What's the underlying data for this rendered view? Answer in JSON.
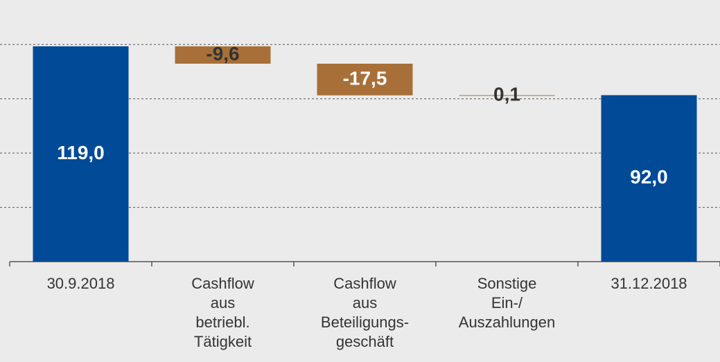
{
  "chart_data": {
    "type": "waterfall",
    "categories": [
      "30.9.2018",
      "Cashflow\naus\nbetriebl.\nTätigkeit",
      "Cashflow\naus\nBeteiligungs-\ngeschäft",
      "Sonstige\nEin-/\nAuszahlungen",
      "31.12.2018"
    ],
    "values": [
      119.0,
      -9.6,
      -17.5,
      0.1,
      92.0
    ],
    "value_labels": [
      "119,0",
      "-9,6",
      "-17,5",
      "0,1",
      "92,0"
    ],
    "measure": [
      "total",
      "relative",
      "relative",
      "relative",
      "total"
    ],
    "total_color": "#004a98",
    "relative_color": "#a87038",
    "ylim": [
      0,
      140
    ],
    "yticks": [
      0,
      30,
      60,
      90,
      120
    ],
    "grid": true
  }
}
